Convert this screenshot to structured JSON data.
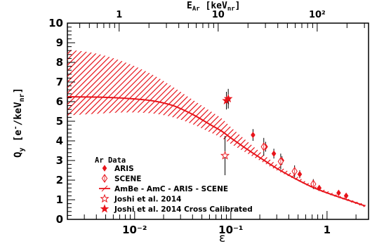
{
  "chart_data": {
    "type": "scatter",
    "x_axis": {
      "label": "ε",
      "scale": "log",
      "range": [
        0.002,
        2.7
      ],
      "major_ticks": [
        0.01,
        0.1,
        1
      ],
      "major_tick_labels": [
        "10⁻²",
        "10⁻¹",
        "1"
      ]
    },
    "top_axis": {
      "label_base": "E",
      "label_sub": "Ar",
      "label_unit_open": " [keV",
      "label_unit_sub": "nr",
      "label_unit_close": "]",
      "scale": "log",
      "range": [
        0.3,
        330
      ],
      "major_ticks": [
        1,
        10,
        100
      ],
      "major_tick_labels": [
        "1",
        "10",
        "10²"
      ]
    },
    "y_axis": {
      "label_base": "Q",
      "label_sub": "y",
      "label_mid": " [e",
      "label_sup": "-",
      "label_unit": "/keV",
      "label_unit_sub": "nr",
      "label_close": "]",
      "scale": "linear",
      "range": [
        0,
        10
      ],
      "major_ticks": [
        0,
        1,
        2,
        3,
        4,
        5,
        6,
        7,
        8,
        9,
        10
      ],
      "major_tick_labels": [
        "0",
        "1",
        "2",
        "3",
        "4",
        "5",
        "6",
        "7",
        "8",
        "9",
        "10"
      ]
    },
    "grid": false,
    "legend": {
      "placement": "bottom-left",
      "header": "Ar Data",
      "entries": [
        "ARIS",
        "SCENE",
        "AmBe - AmC - ARIS - SCENE",
        "Joshi et al. 2014",
        "Joshi et al. 2014 Cross Calibrated"
      ]
    },
    "colors": {
      "series": "#e8141b",
      "text": "#000000"
    },
    "series": [
      {
        "name": "AmBe - AmC - ARIS - SCENE",
        "kind": "curve_with_hatched_band",
        "x": [
          0.002,
          0.004,
          0.008,
          0.015,
          0.025,
          0.04,
          0.06,
          0.08,
          0.1,
          0.15,
          0.2,
          0.3,
          0.5,
          0.7,
          1,
          1.5,
          2.5
        ],
        "y": [
          6.25,
          6.23,
          6.17,
          6.05,
          5.8,
          5.35,
          4.85,
          4.5,
          4.15,
          3.55,
          3.15,
          2.6,
          2.0,
          1.65,
          1.35,
          1.05,
          0.68
        ],
        "band_low": [
          5.3,
          5.38,
          5.45,
          5.4,
          5.2,
          4.85,
          4.45,
          4.15,
          3.85,
          3.35,
          3.0,
          2.5,
          1.95,
          1.6,
          1.3,
          1.0,
          0.6
        ],
        "band_high": [
          8.65,
          8.45,
          8.0,
          7.4,
          6.75,
          6.1,
          5.55,
          5.15,
          4.7,
          3.95,
          3.45,
          2.8,
          2.15,
          1.75,
          1.45,
          1.12,
          0.76
        ]
      },
      {
        "name": "ARIS",
        "marker": "filled-diamond",
        "x": [
          0.17,
          0.23,
          0.28,
          0.34,
          0.52,
          0.83,
          1.32,
          1.58
        ],
        "y": [
          4.3,
          3.7,
          3.35,
          3.0,
          2.3,
          1.6,
          1.35,
          1.2
        ],
        "yerr": [
          0.3,
          0.25,
          0.25,
          0.22,
          0.2,
          0.14,
          0.12,
          0.1
        ]
      },
      {
        "name": "SCENE",
        "marker": "open-diamond",
        "x": [
          0.22,
          0.33,
          0.46,
          0.72
        ],
        "y": [
          3.7,
          2.95,
          2.45,
          1.8
        ],
        "yerr": [
          0.45,
          0.4,
          0.3,
          0.25
        ]
      },
      {
        "name": "Joshi et al. 2014",
        "marker": "open-star",
        "x": [
          0.087
        ],
        "y": [
          3.25
        ],
        "yerr": [
          1.0
        ]
      },
      {
        "name": "Joshi et al. 2014 Cross Calibrated",
        "marker": "filled-star",
        "x": [
          0.09,
          0.094
        ],
        "y": [
          6.05,
          6.15
        ],
        "yerr": [
          0.45,
          0.5
        ]
      }
    ]
  }
}
